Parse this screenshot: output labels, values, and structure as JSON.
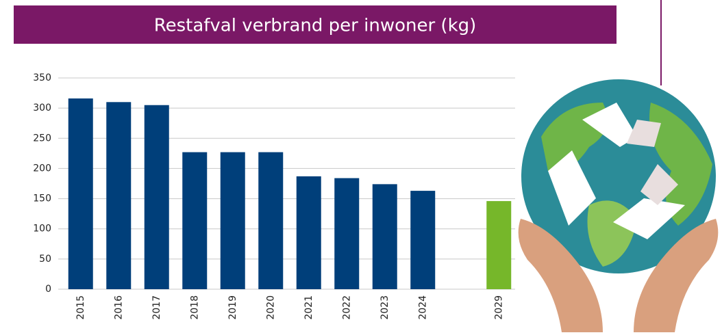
{
  "chart_data": {
    "type": "bar",
    "title": "Restafval verbrand per inwoner (kg)",
    "categories": [
      "2015",
      "2016",
      "2017",
      "2018",
      "2019",
      "2020",
      "2021",
      "2022",
      "2023",
      "2024",
      null,
      "2029"
    ],
    "values": [
      316,
      310,
      305,
      227,
      227,
      227,
      187,
      184,
      174,
      163,
      null,
      146
    ],
    "colors": [
      "#003f7a",
      "#003f7a",
      "#003f7a",
      "#003f7a",
      "#003f7a",
      "#003f7a",
      "#003f7a",
      "#003f7a",
      "#003f7a",
      "#003f7a",
      null,
      "#76b72a"
    ],
    "ylim": [
      0,
      350
    ],
    "yticks": [
      0,
      50,
      100,
      150,
      200,
      250,
      300,
      350
    ],
    "grid": true
  }
}
